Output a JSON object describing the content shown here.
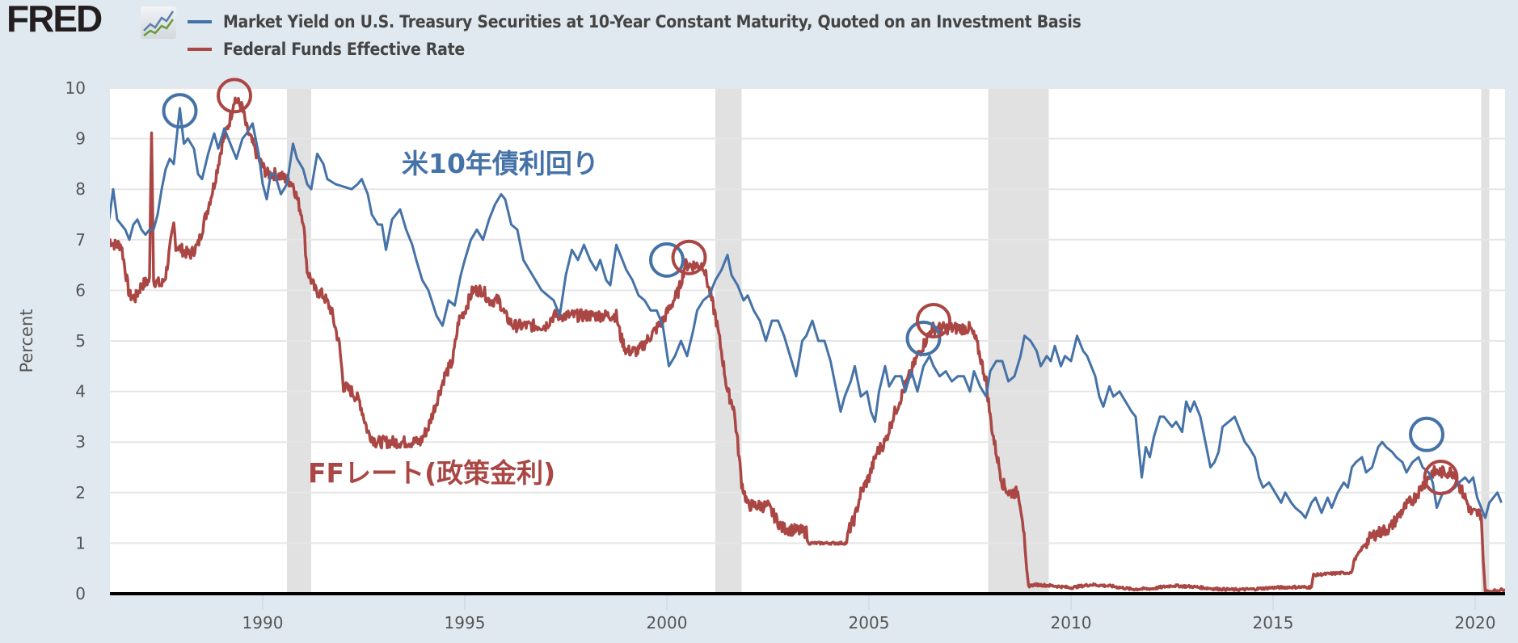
{
  "header": {
    "logo_text": "FRED",
    "logo_icon": "chart-line-icon"
  },
  "chart_data": {
    "type": "line",
    "title": "",
    "xlabel": "",
    "ylabel": "Percent",
    "xlim": [
      1986.2,
      2020.75
    ],
    "ylim": [
      0,
      10
    ],
    "grid": true,
    "legend_position": "top",
    "x_ticks": [
      "1990",
      "1995",
      "2000",
      "2005",
      "2010",
      "2015",
      "2020"
    ],
    "y_ticks": [
      "0",
      "1",
      "2",
      "3",
      "4",
      "5",
      "6",
      "7",
      "8",
      "9",
      "10"
    ],
    "recessions": [
      [
        1990.6,
        1991.2
      ],
      [
        2001.2,
        2001.85
      ],
      [
        2007.95,
        2009.45
      ],
      [
        2020.15,
        2020.35
      ]
    ],
    "series": [
      {
        "name": "Market Yield on U.S. Treasury Securities at 10-Year Constant Maturity, Quoted on an Investment Basis",
        "color": "#4572a7",
        "points": [
          [
            1986.2,
            7.4
          ],
          [
            1986.3,
            8.0
          ],
          [
            1986.4,
            7.4
          ],
          [
            1986.5,
            7.3
          ],
          [
            1986.6,
            7.2
          ],
          [
            1986.7,
            7.0
          ],
          [
            1986.8,
            7.3
          ],
          [
            1986.9,
            7.4
          ],
          [
            1987.0,
            7.2
          ],
          [
            1987.1,
            7.1
          ],
          [
            1987.2,
            7.2
          ],
          [
            1987.3,
            7.2
          ],
          [
            1987.4,
            7.5
          ],
          [
            1987.5,
            8.0
          ],
          [
            1987.6,
            8.4
          ],
          [
            1987.7,
            8.6
          ],
          [
            1987.8,
            8.5
          ],
          [
            1987.95,
            9.6
          ],
          [
            1988.05,
            8.9
          ],
          [
            1988.15,
            9.0
          ],
          [
            1988.3,
            8.8
          ],
          [
            1988.4,
            8.3
          ],
          [
            1988.5,
            8.2
          ],
          [
            1988.65,
            8.7
          ],
          [
            1988.8,
            9.1
          ],
          [
            1988.9,
            8.8
          ],
          [
            1989.05,
            9.2
          ],
          [
            1989.2,
            8.9
          ],
          [
            1989.35,
            8.6
          ],
          [
            1989.5,
            9.0
          ],
          [
            1989.6,
            9.1
          ],
          [
            1989.75,
            9.3
          ],
          [
            1989.9,
            8.7
          ],
          [
            1990.0,
            8.1
          ],
          [
            1990.1,
            7.8
          ],
          [
            1990.2,
            8.3
          ],
          [
            1990.3,
            8.3
          ],
          [
            1990.45,
            7.9
          ],
          [
            1990.6,
            8.1
          ],
          [
            1990.75,
            8.9
          ],
          [
            1990.85,
            8.6
          ],
          [
            1991.0,
            8.4
          ],
          [
            1991.1,
            8.1
          ],
          [
            1991.2,
            8.0
          ],
          [
            1991.35,
            8.7
          ],
          [
            1991.5,
            8.5
          ],
          [
            1991.6,
            8.2
          ],
          [
            1991.8,
            8.1
          ],
          [
            1992.0,
            8.05
          ],
          [
            1992.2,
            8.0
          ],
          [
            1992.35,
            8.1
          ],
          [
            1992.45,
            8.2
          ],
          [
            1992.6,
            7.9
          ],
          [
            1992.7,
            7.5
          ],
          [
            1992.85,
            7.3
          ],
          [
            1992.95,
            7.3
          ],
          [
            1993.05,
            6.8
          ],
          [
            1993.2,
            7.4
          ],
          [
            1993.3,
            7.5
          ],
          [
            1993.4,
            7.6
          ],
          [
            1993.55,
            7.2
          ],
          [
            1993.7,
            6.9
          ],
          [
            1993.8,
            6.6
          ],
          [
            1993.95,
            6.2
          ],
          [
            1994.1,
            6.0
          ],
          [
            1994.3,
            5.5
          ],
          [
            1994.45,
            5.3
          ],
          [
            1994.6,
            5.8
          ],
          [
            1994.75,
            5.7
          ],
          [
            1994.9,
            6.3
          ],
          [
            1995.0,
            6.6
          ],
          [
            1995.15,
            7.0
          ],
          [
            1995.3,
            7.2
          ],
          [
            1995.45,
            7.0
          ],
          [
            1995.6,
            7.4
          ],
          [
            1995.75,
            7.7
          ],
          [
            1995.9,
            7.9
          ],
          [
            1996.0,
            7.8
          ],
          [
            1996.15,
            7.3
          ],
          [
            1996.3,
            7.2
          ],
          [
            1996.45,
            6.6
          ],
          [
            1996.6,
            6.4
          ],
          [
            1996.75,
            6.2
          ],
          [
            1996.9,
            6.0
          ],
          [
            1997.05,
            5.9
          ],
          [
            1997.2,
            5.8
          ],
          [
            1997.35,
            5.5
          ],
          [
            1997.5,
            6.3
          ],
          [
            1997.65,
            6.8
          ],
          [
            1997.8,
            6.6
          ],
          [
            1997.95,
            6.9
          ],
          [
            1998.1,
            6.6
          ],
          [
            1998.25,
            6.4
          ],
          [
            1998.35,
            6.6
          ],
          [
            1998.5,
            6.2
          ],
          [
            1998.6,
            6.1
          ],
          [
            1998.75,
            6.9
          ],
          [
            1998.85,
            6.7
          ],
          [
            1999.0,
            6.4
          ],
          [
            1999.15,
            6.2
          ],
          [
            1999.3,
            5.9
          ],
          [
            1999.45,
            5.8
          ],
          [
            1999.6,
            5.6
          ],
          [
            1999.75,
            5.6
          ],
          [
            1999.9,
            5.3
          ],
          [
            2000.05,
            4.5
          ],
          [
            2000.2,
            4.7
          ],
          [
            2000.35,
            5.0
          ],
          [
            2000.5,
            4.7
          ],
          [
            2000.65,
            5.2
          ],
          [
            2000.75,
            5.6
          ],
          [
            2000.9,
            5.8
          ],
          [
            2001.05,
            5.9
          ],
          [
            2001.2,
            6.2
          ],
          [
            2001.35,
            6.4
          ],
          [
            2001.5,
            6.7
          ],
          [
            2001.6,
            6.3
          ],
          [
            2001.75,
            6.1
          ],
          [
            2001.9,
            5.8
          ],
          [
            2002.0,
            5.9
          ],
          [
            2002.15,
            5.6
          ],
          [
            2002.3,
            5.4
          ],
          [
            2002.45,
            5.0
          ],
          [
            2002.6,
            5.4
          ],
          [
            2002.75,
            5.4
          ],
          [
            2002.9,
            5.1
          ],
          [
            2003.05,
            4.7
          ],
          [
            2003.2,
            4.3
          ],
          [
            2003.35,
            5.0
          ],
          [
            2003.45,
            5.1
          ],
          [
            2003.6,
            5.4
          ],
          [
            2003.75,
            5.0
          ],
          [
            2003.9,
            5.0
          ],
          [
            2004.05,
            4.6
          ],
          [
            2004.2,
            4.0
          ],
          [
            2004.3,
            3.6
          ],
          [
            2004.4,
            3.9
          ],
          [
            2004.55,
            4.2
          ],
          [
            2004.65,
            4.5
          ],
          [
            2004.8,
            3.9
          ],
          [
            2004.95,
            4.0
          ],
          [
            2005.05,
            3.6
          ],
          [
            2005.15,
            3.4
          ],
          [
            2005.25,
            4.0
          ],
          [
            2005.4,
            4.5
          ],
          [
            2005.5,
            4.1
          ],
          [
            2005.65,
            4.3
          ],
          [
            2005.8,
            4.3
          ],
          [
            2005.9,
            4.0
          ],
          [
            2006.05,
            4.4
          ],
          [
            2006.2,
            4.0
          ],
          [
            2006.35,
            4.5
          ],
          [
            2006.5,
            4.7
          ],
          [
            2006.6,
            4.5
          ],
          [
            2006.75,
            4.3
          ],
          [
            2006.9,
            4.4
          ],
          [
            2007.05,
            4.2
          ],
          [
            2007.2,
            4.3
          ],
          [
            2007.35,
            4.3
          ],
          [
            2007.5,
            4.0
          ],
          [
            2007.6,
            4.4
          ],
          [
            2007.75,
            4.1
          ],
          [
            2007.9,
            3.9
          ],
          [
            2008.0,
            4.4
          ],
          [
            2008.15,
            4.6
          ],
          [
            2008.3,
            4.6
          ],
          [
            2008.45,
            4.2
          ],
          [
            2008.6,
            4.3
          ],
          [
            2008.75,
            4.7
          ],
          [
            2008.85,
            5.1
          ],
          [
            2009.0,
            5.0
          ],
          [
            2009.15,
            4.8
          ],
          [
            2009.25,
            4.5
          ],
          [
            2009.4,
            4.7
          ],
          [
            2009.5,
            4.6
          ],
          [
            2009.6,
            4.9
          ],
          [
            2009.75,
            4.5
          ],
          [
            2009.85,
            4.7
          ],
          [
            2010.0,
            4.6
          ],
          [
            2010.15,
            5.1
          ],
          [
            2010.3,
            4.8
          ],
          [
            2010.4,
            4.7
          ],
          [
            2010.5,
            4.5
          ],
          [
            2010.6,
            4.3
          ],
          [
            2010.7,
            3.9
          ],
          [
            2010.8,
            3.7
          ],
          [
            2010.95,
            4.1
          ],
          [
            2011.05,
            3.9
          ],
          [
            2011.2,
            4.0
          ],
          [
            2011.35,
            3.8
          ],
          [
            2011.5,
            3.6
          ],
          [
            2011.6,
            3.5
          ],
          [
            2011.75,
            2.3
          ],
          [
            2011.85,
            2.9
          ],
          [
            2011.95,
            2.7
          ],
          [
            2012.05,
            3.1
          ],
          [
            2012.2,
            3.5
          ],
          [
            2012.3,
            3.5
          ],
          [
            2012.4,
            3.4
          ],
          [
            2012.5,
            3.3
          ],
          [
            2012.6,
            3.4
          ],
          [
            2012.75,
            3.2
          ],
          [
            2012.85,
            3.8
          ],
          [
            2012.95,
            3.6
          ],
          [
            2013.05,
            3.8
          ],
          [
            2013.2,
            3.5
          ],
          [
            2013.3,
            3.1
          ],
          [
            2013.45,
            2.5
          ],
          [
            2013.55,
            2.6
          ],
          [
            2013.65,
            2.8
          ],
          [
            2013.75,
            3.3
          ],
          [
            2013.9,
            3.4
          ],
          [
            2014.05,
            3.5
          ],
          [
            2014.2,
            3.2
          ],
          [
            2014.3,
            3.0
          ],
          [
            2014.4,
            2.9
          ],
          [
            2014.55,
            2.7
          ],
          [
            2014.65,
            2.3
          ],
          [
            2014.75,
            2.1
          ],
          [
            2014.9,
            2.2
          ],
          [
            2015.05,
            2.0
          ],
          [
            2015.2,
            1.8
          ],
          [
            2015.3,
            2.0
          ],
          [
            2015.45,
            1.8
          ],
          [
            2015.55,
            1.7
          ],
          [
            2015.7,
            1.6
          ],
          [
            2015.8,
            1.5
          ],
          [
            2015.95,
            1.8
          ],
          [
            2016.05,
            1.9
          ],
          [
            2016.2,
            1.6
          ],
          [
            2016.35,
            1.9
          ],
          [
            2016.45,
            1.7
          ],
          [
            2016.6,
            2.0
          ],
          [
            2016.75,
            2.2
          ],
          [
            2016.85,
            2.1
          ],
          [
            2016.95,
            2.5
          ],
          [
            2017.05,
            2.6
          ],
          [
            2017.2,
            2.7
          ],
          [
            2017.3,
            2.4
          ],
          [
            2017.45,
            2.5
          ],
          [
            2017.6,
            2.9
          ],
          [
            2017.7,
            3.0
          ],
          [
            2017.8,
            2.9
          ],
          [
            2017.95,
            2.8
          ],
          [
            2018.05,
            2.7
          ],
          [
            2018.2,
            2.6
          ],
          [
            2018.3,
            2.4
          ],
          [
            2018.45,
            2.6
          ],
          [
            2018.6,
            2.7
          ],
          [
            2018.7,
            2.5
          ],
          [
            2018.85,
            2.4
          ],
          [
            2018.95,
            2.2
          ],
          [
            2019.05,
            1.7
          ],
          [
            2019.2,
            2.0
          ],
          [
            2019.35,
            2.0
          ],
          [
            2019.5,
            2.1
          ],
          [
            2019.6,
            2.2
          ],
          [
            2019.75,
            2.3
          ],
          [
            2019.85,
            2.2
          ],
          [
            2019.95,
            2.3
          ],
          [
            2020.05,
            1.9
          ],
          [
            2020.15,
            1.7
          ],
          [
            2020.25,
            1.5
          ],
          [
            2020.35,
            1.8
          ],
          [
            2020.45,
            1.9
          ],
          [
            2020.55,
            2.0
          ],
          [
            2020.65,
            1.8
          ]
        ]
      },
      {
        "name": "Federal Funds Effective Rate",
        "color": "#aa4643",
        "points": []
      }
    ],
    "annotations": [
      {
        "text": "米10年債利回り",
        "color": "#4572a7"
      },
      {
        "text": "FFレート(政策金利)",
        "color": "#aa4643"
      }
    ]
  }
}
